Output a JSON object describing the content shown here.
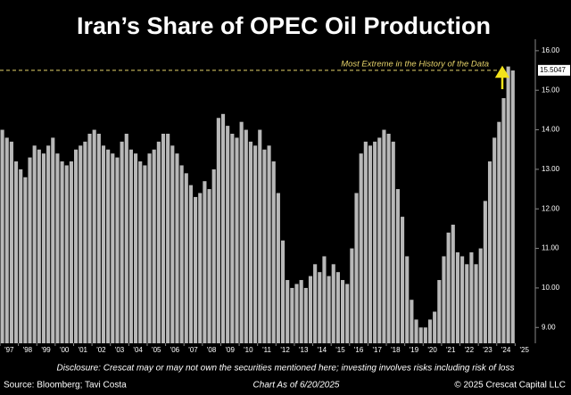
{
  "chart_data": {
    "type": "bar",
    "title": "Iran’s Share of OPEC Oil Production",
    "categories": [
      "'97",
      null,
      null,
      null,
      "'98",
      null,
      null,
      null,
      "'99",
      null,
      null,
      null,
      "'00",
      null,
      null,
      null,
      "'01",
      null,
      null,
      null,
      "'02",
      null,
      null,
      null,
      "'03",
      null,
      null,
      null,
      "'04",
      null,
      null,
      null,
      "'05",
      null,
      null,
      null,
      "'06",
      null,
      null,
      null,
      "'07",
      null,
      null,
      null,
      "'08",
      null,
      null,
      null,
      "'09",
      null,
      null,
      null,
      "'10",
      null,
      null,
      null,
      "'11",
      null,
      null,
      null,
      "'12",
      null,
      null,
      null,
      "'13",
      null,
      null,
      null,
      "'14",
      null,
      null,
      null,
      "'15",
      null,
      null,
      null,
      "'16",
      null,
      null,
      null,
      "'17",
      null,
      null,
      null,
      "'18",
      null,
      null,
      null,
      "'19",
      null,
      null,
      null,
      "'20",
      null,
      null,
      null,
      "'21",
      null,
      null,
      null,
      "'22",
      null,
      null,
      null,
      "'23",
      null,
      null,
      null,
      "'24",
      null,
      null,
      null,
      "'25",
      null,
      null,
      null
    ],
    "values": [
      14.0,
      13.8,
      13.7,
      13.2,
      13.0,
      12.8,
      13.3,
      13.6,
      13.5,
      13.4,
      13.6,
      13.8,
      13.4,
      13.2,
      13.1,
      13.2,
      13.5,
      13.6,
      13.7,
      13.9,
      14.0,
      13.9,
      13.6,
      13.5,
      13.4,
      13.3,
      13.7,
      13.9,
      13.5,
      13.4,
      13.2,
      13.1,
      13.4,
      13.5,
      13.7,
      13.9,
      13.9,
      13.6,
      13.4,
      13.1,
      12.9,
      12.6,
      12.3,
      12.4,
      12.7,
      12.5,
      13.0,
      14.3,
      14.4,
      14.1,
      13.9,
      13.8,
      14.2,
      14.0,
      13.7,
      13.6,
      14.0,
      13.5,
      13.6,
      13.2,
      12.4,
      11.2,
      10.2,
      10.0,
      10.1,
      10.2,
      10.0,
      10.3,
      10.6,
      10.4,
      10.8,
      10.3,
      10.6,
      10.4,
      10.2,
      10.1,
      11.0,
      12.4,
      13.4,
      13.7,
      13.6,
      13.7,
      13.8,
      14.0,
      13.9,
      13.7,
      12.5,
      11.8,
      10.8,
      9.7,
      9.2,
      9.0,
      9.0,
      9.2,
      9.4,
      10.2,
      10.8,
      11.4,
      11.6,
      10.9,
      10.8,
      10.6,
      10.9,
      10.6,
      11.0,
      12.2,
      13.2,
      13.8,
      14.2,
      14.8,
      15.6,
      15.5,
      null,
      null,
      null,
      null
    ],
    "color": "#b8b8b8",
    "ylim": [
      8.6,
      16.2
    ],
    "yticks": [
      {
        "value": 9,
        "label": "9.00"
      },
      {
        "value": 10,
        "label": "10.00"
      },
      {
        "value": 11,
        "label": "11.00"
      },
      {
        "value": 12,
        "label": "12.00"
      },
      {
        "value": 13,
        "label": "13.00"
      },
      {
        "value": 14,
        "label": "14.00"
      },
      {
        "value": 15,
        "label": "15.00"
      },
      {
        "value": 16,
        "label": "16.00"
      }
    ],
    "grid": false,
    "reference_line": {
      "value": 15.5047,
      "label": "Most Extreme in the History of the Data",
      "color": "#e6d36a"
    },
    "disclosure": "Disclosure: Crescat may or may not own the securities mentioned here; investing involves risks including risk of loss",
    "source": "Source: Bloomberg; Tavi Costa",
    "date_note": "Chart As of 6/20/2025",
    "copyright": "© 2025 Crescat Capital LLC"
  }
}
